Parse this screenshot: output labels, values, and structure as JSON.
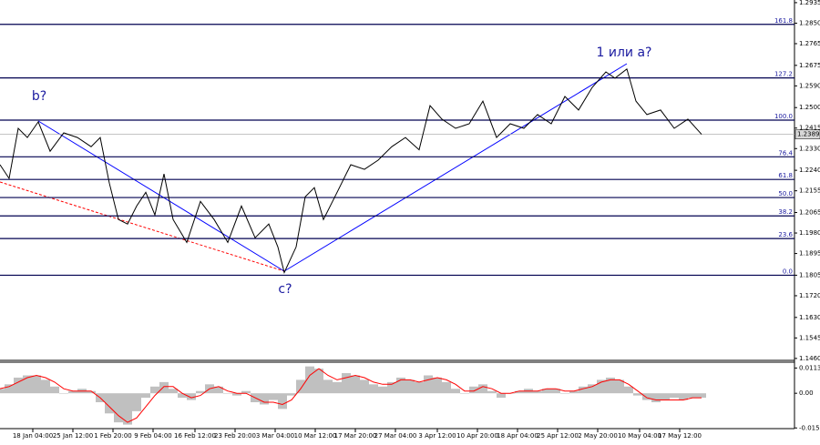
{
  "chart_data": [
    {
      "type": "line",
      "color": "#000000",
      "x": [
        0,
        10,
        20,
        30,
        42,
        55,
        70,
        85,
        100,
        110,
        120,
        130,
        140,
        150,
        160,
        170,
        180,
        190,
        205,
        220,
        235,
        250,
        265,
        280,
        295,
        305,
        312,
        325,
        335,
        345,
        355,
        370,
        385,
        400,
        415,
        430,
        445,
        460,
        472,
        485,
        500,
        515,
        530,
        545,
        560,
        575,
        590,
        605,
        620,
        635,
        650,
        665,
        675,
        688,
        698,
        710,
        725,
        740,
        755,
        770
      ],
      "values": [
        1.2263,
        1.2206,
        1.2414,
        1.2376,
        1.2441,
        1.2319,
        1.2395,
        1.2376,
        1.2338,
        1.2376,
        1.2187,
        1.2036,
        1.2017,
        1.2092,
        1.2149,
        1.2055,
        1.2225,
        1.2036,
        1.1941,
        1.2111,
        1.2036,
        1.1941,
        1.2092,
        1.196,
        1.2017,
        1.1922,
        1.1816,
        1.1922,
        1.213,
        1.2168,
        1.2036,
        1.2149,
        1.2263,
        1.2244,
        1.2282,
        1.2338,
        1.2376,
        1.2325,
        1.2508,
        1.2452,
        1.2414,
        1.2433,
        1.2527,
        1.2376,
        1.2433,
        1.2414,
        1.2471,
        1.2433,
        1.2546,
        1.249,
        1.2584,
        1.2648,
        1.2622,
        1.266,
        1.2527,
        1.2471,
        1.249,
        1.2414,
        1.2452,
        1.2389
      ],
      "xlim": [
        0,
        872
      ],
      "xticks": [
        {
          "value": 36,
          "label": "18 Jan 04:00"
        },
        {
          "value": 80,
          "label": "25 Jan 12:00"
        },
        {
          "value": 124,
          "label": "1 Feb 20:00"
        },
        {
          "value": 168,
          "label": "9 Feb 04:00"
        },
        {
          "value": 214,
          "label": "16 Feb 12:00"
        },
        {
          "value": 258,
          "label": "23 Feb 20:00"
        },
        {
          "value": 302,
          "label": "3 Mar 04:00"
        },
        {
          "value": 346,
          "label": "10 Mar 12:00"
        },
        {
          "value": 390,
          "label": "17 Mar 20:00"
        },
        {
          "value": 434,
          "label": "27 Mar 04:00"
        },
        {
          "value": 480,
          "label": "3 Apr 12:00"
        },
        {
          "value": 524,
          "label": "10 Apr 20:00"
        },
        {
          "value": 568,
          "label": "18 Apr 04:00"
        },
        {
          "value": 612,
          "label": "25 Apr 12:00"
        },
        {
          "value": 656,
          "label": "2 May 20:00"
        },
        {
          "value": 702,
          "label": "10 May 04:00"
        },
        {
          "value": 746,
          "label": "17 May 12:00"
        }
      ],
      "ylim": [
        1.1452,
        1.2946
      ],
      "yticks": [
        1.2935,
        {
          "value": 1.285,
          "label": "1.2850"
        },
        1.2765,
        1.2675,
        {
          "value": 1.259,
          "label": "1.2590"
        },
        {
          "value": 1.25,
          "label": "1.2500"
        },
        1.2415,
        {
          "value": 1.233,
          "label": "1.2330"
        },
        {
          "value": 1.224,
          "label": "1.2240"
        },
        1.2155,
        1.2065,
        {
          "value": 1.198,
          "label": "1.1980"
        },
        1.1895,
        1.1805,
        {
          "value": 1.172,
          "label": "1.1720"
        },
        {
          "value": 1.163,
          "label": "1.1630"
        },
        1.1545,
        {
          "value": 1.146,
          "label": "1.1460"
        }
      ],
      "levels": [
        {
          "name": "161.8",
          "value": 1.2845
        },
        {
          "name": "127.2",
          "value": 1.2623
        },
        {
          "name": "100.0",
          "value": 1.2448
        },
        {
          "name": "76.4",
          "value": 1.2296
        },
        {
          "name": "61.8",
          "value": 1.2202
        },
        {
          "name": "50.0",
          "value": 1.2127
        },
        {
          "name": "38.2",
          "value": 1.2051
        },
        {
          "name": "23.6",
          "value": 1.1957
        },
        {
          "name": "0.0",
          "value": 1.1805
        }
      ],
      "level_color": "#000050",
      "last_price": 1.2389,
      "annotations": [
        "b?",
        "c?",
        "1 или a?"
      ]
    },
    {
      "type": "bar",
      "x": [
        0,
        10,
        20,
        30,
        40,
        50,
        60,
        70,
        80,
        90,
        100,
        110,
        120,
        130,
        140,
        150,
        160,
        170,
        180,
        190,
        200,
        210,
        220,
        230,
        240,
        250,
        260,
        270,
        280,
        290,
        300,
        310,
        320,
        330,
        340,
        350,
        360,
        370,
        380,
        390,
        400,
        410,
        420,
        430,
        440,
        450,
        460,
        470,
        480,
        490,
        500,
        510,
        520,
        530,
        540,
        550,
        560,
        570,
        580,
        590,
        600,
        610,
        620,
        630,
        640,
        650,
        660,
        670,
        680,
        690,
        700,
        710,
        720,
        730,
        740,
        750,
        760,
        770
      ],
      "xlim": [
        0,
        872
      ],
      "ylim": [
        -0.0158,
        0.0139
      ],
      "yticks": [
        0.0113,
        {
          "value": 0,
          "label": "0.00"
        },
        -0.0155
      ],
      "series": [
        {
          "color": "#c0c0c0",
          "values": [
            0.002,
            0.004,
            0.007,
            0.008,
            0.008,
            0.006,
            0.003,
            0,
            0.001,
            0.002,
            0.001,
            -0.004,
            -0.009,
            -0.013,
            -0.014,
            -0.008,
            -0.002,
            0.003,
            0.005,
            0.002,
            -0.002,
            -0.003,
            0.001,
            0.004,
            0.003,
            0,
            -0.001,
            0.001,
            -0.004,
            -0.005,
            -0.003,
            -0.007,
            -0.001,
            0.006,
            0.012,
            0.011,
            0.006,
            0.005,
            0.009,
            0.008,
            0.006,
            0.004,
            0.003,
            0.005,
            0.007,
            0.006,
            0.005,
            0.008,
            0.007,
            0.005,
            0.002,
            0,
            0.003,
            0.004,
            0.001,
            -0.002,
            0,
            0.001,
            0.002,
            0.001,
            0.002,
            0.002,
            0,
            0.001,
            0.003,
            0.004,
            0.006,
            0.007,
            0.006,
            0.003,
            -0.001,
            -0.003,
            -0.004,
            -0.003,
            -0.002,
            -0.003,
            -0.002,
            -0.002
          ]
        },
        {
          "type": "line",
          "color": "#ff0000",
          "values": [
            0.002,
            0.003,
            0.005,
            0.007,
            0.008,
            0.007,
            0.005,
            0.002,
            0.001,
            0.001,
            0.001,
            -0.002,
            -0.006,
            -0.01,
            -0.013,
            -0.011,
            -0.006,
            -0.001,
            0.003,
            0.003,
            0,
            -0.002,
            -0.001,
            0.002,
            0.003,
            0.001,
            0,
            0,
            -0.002,
            -0.004,
            -0.004,
            -0.005,
            -0.003,
            0.002,
            0.008,
            0.011,
            0.008,
            0.006,
            0.007,
            0.008,
            0.007,
            0.005,
            0.004,
            0.004,
            0.006,
            0.006,
            0.005,
            0.006,
            0.007,
            0.006,
            0.004,
            0.001,
            0.001,
            0.003,
            0.002,
            0,
            0,
            0.001,
            0.001,
            0.001,
            0.002,
            0.002,
            0.001,
            0.001,
            0.002,
            0.003,
            0.005,
            0.006,
            0.006,
            0.004,
            0.001,
            -0.002,
            -0.003,
            -0.003,
            -0.003,
            -0.003,
            -0.002,
            -0.002
          ]
        }
      ]
    }
  ]
}
